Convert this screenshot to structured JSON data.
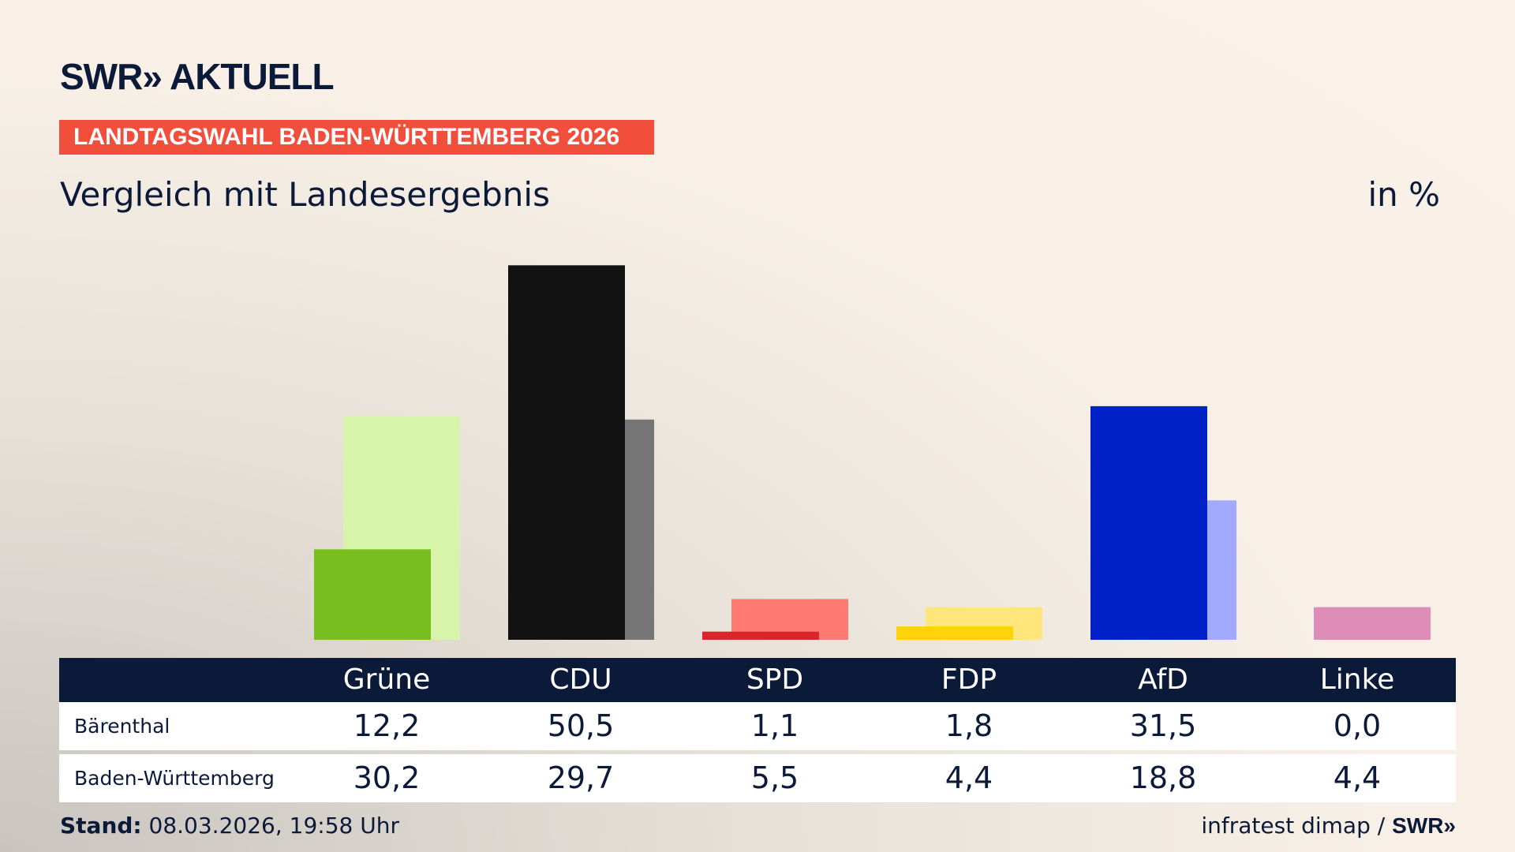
{
  "brand": {
    "logo": "SWR» AKTUELL"
  },
  "banner": "LANDTAGSWAHL BADEN-WÜRTTEMBERG 2026",
  "subtitle": "Vergleich mit Landesergebnis",
  "unit": "in %",
  "chart_data": {
    "type": "bar",
    "categories": [
      "Grüne",
      "CDU",
      "SPD",
      "FDP",
      "AfD",
      "Linke"
    ],
    "series": [
      {
        "name": "Bärenthal",
        "values": [
          12.2,
          50.5,
          1.1,
          1.8,
          31.5,
          0.0
        ],
        "display": [
          "12,2",
          "50,5",
          "1,1",
          "1,8",
          "31,5",
          "0,0"
        ],
        "colors": [
          "#78be1e",
          "#121212",
          "#d8262a",
          "#ffd20a",
          "#0022c8",
          "#c0397a"
        ]
      },
      {
        "name": "Baden-Württemberg",
        "values": [
          30.2,
          29.7,
          5.5,
          4.4,
          18.8,
          4.4
        ],
        "display": [
          "30,2",
          "29,7",
          "5,5",
          "4,4",
          "18,8",
          "4,4"
        ],
        "colors": [
          "#d7f5aa",
          "#767676",
          "#ff7a73",
          "#ffe57a",
          "#a0aaff",
          "#de8cb8"
        ]
      }
    ],
    "ylim": [
      0,
      55
    ],
    "grid": false
  },
  "footer": {
    "stand_label": "Stand:",
    "stand_value": " 08.03.2026, 19:58 Uhr",
    "source": "infratest dimap / ",
    "source_brand": "SWR»"
  }
}
